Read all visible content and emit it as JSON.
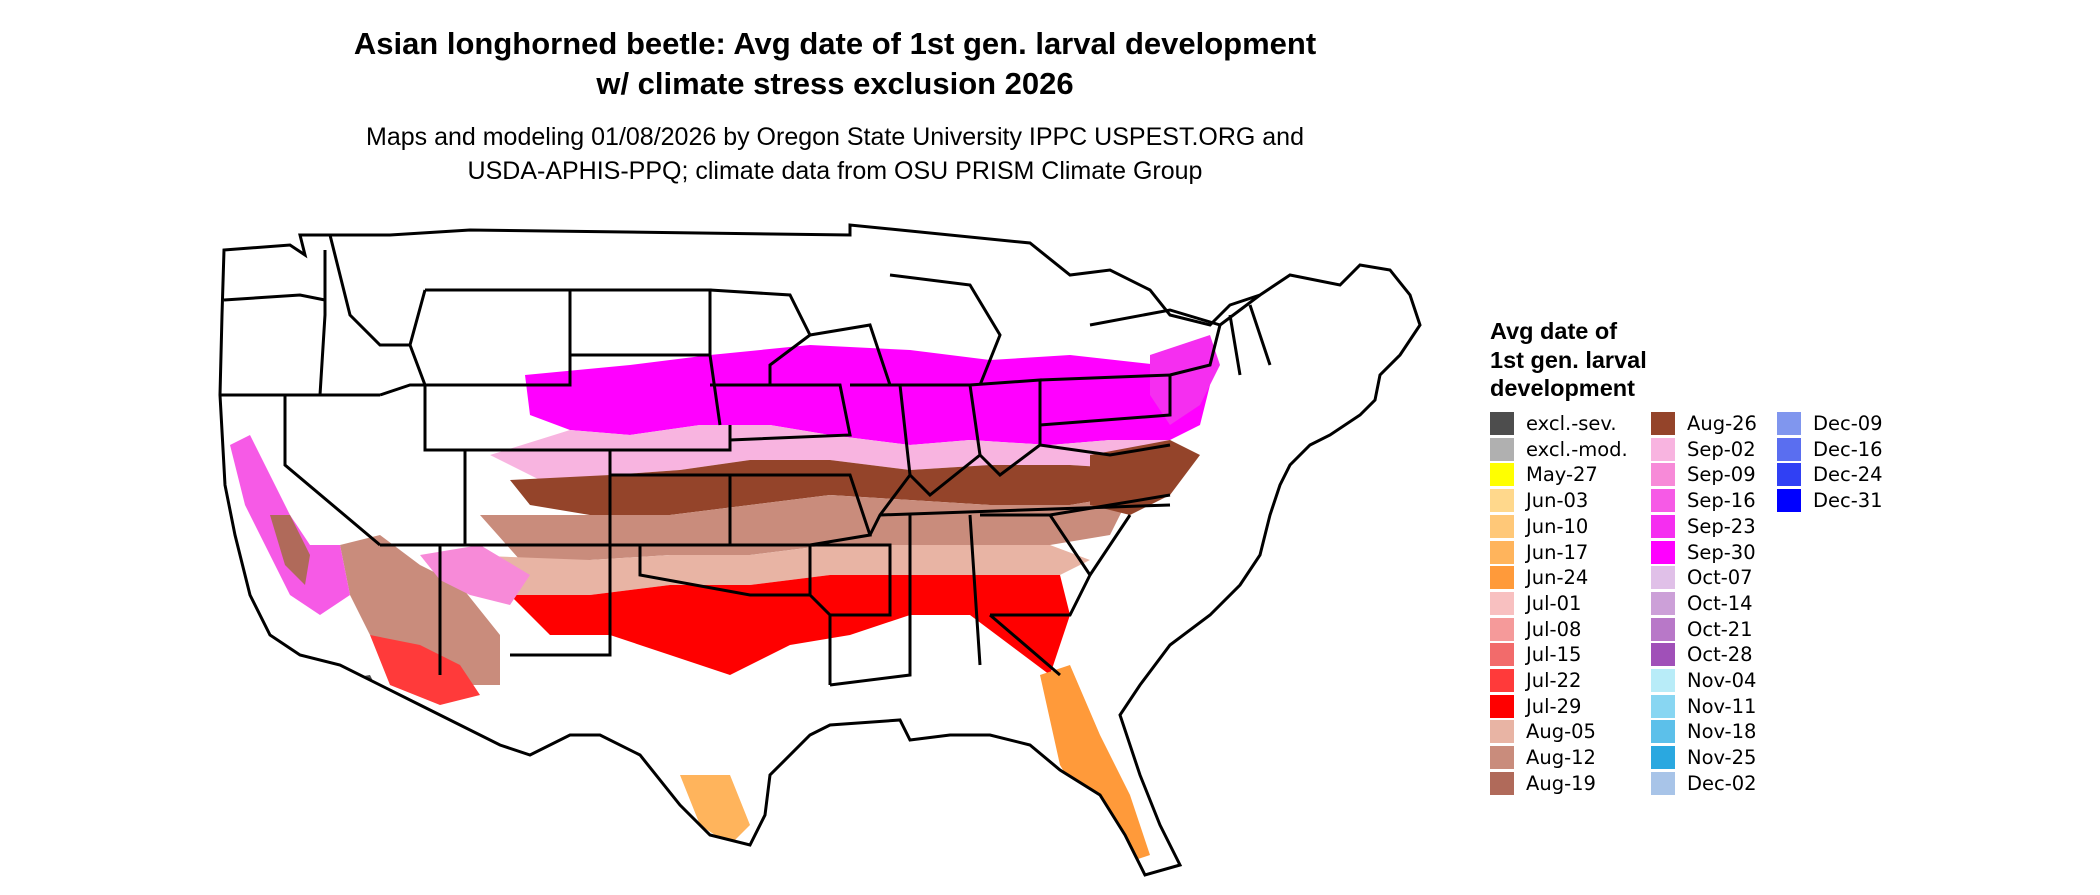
{
  "title": {
    "line1": "Asian longhorned beetle: Avg date of 1st gen. larval development",
    "line2": "w/ climate stress exclusion 2026"
  },
  "subtitle": {
    "line1": "Maps and modeling 01/08/2026 by Oregon State University IPPC USPEST.ORG and",
    "line2": "USDA-APHIS-PPQ; climate data from OSU PRISM Climate Group"
  },
  "legend": {
    "title_lines": [
      "Avg date of",
      "1st gen. larval",
      "development"
    ],
    "items": [
      {
        "label": "excl.-sev.",
        "color": "#4d4d4d"
      },
      {
        "label": "excl.-mod.",
        "color": "#b0b0b0"
      },
      {
        "label": "May-27",
        "color": "#ffff00"
      },
      {
        "label": "Jun-03",
        "color": "#ffd88c"
      },
      {
        "label": "Jun-10",
        "color": "#ffc878"
      },
      {
        "label": "Jun-17",
        "color": "#ffb45c"
      },
      {
        "label": "Jun-24",
        "color": "#ff9a3a"
      },
      {
        "label": "Jul-01",
        "color": "#f8c0c0"
      },
      {
        "label": "Jul-08",
        "color": "#f59a9a"
      },
      {
        "label": "Jul-15",
        "color": "#f26b6b"
      },
      {
        "label": "Jul-22",
        "color": "#ff3a3a"
      },
      {
        "label": "Jul-29",
        "color": "#ff0000"
      },
      {
        "label": "Aug-05",
        "color": "#e8b4a4"
      },
      {
        "label": "Aug-12",
        "color": "#c98c7c"
      },
      {
        "label": "Aug-19",
        "color": "#b06a5a"
      },
      {
        "label": "Aug-26",
        "color": "#94442a"
      },
      {
        "label": "Sep-02",
        "color": "#f8b4e0"
      },
      {
        "label": "Sep-09",
        "color": "#f78ad8"
      },
      {
        "label": "Sep-16",
        "color": "#f65ae6"
      },
      {
        "label": "Sep-23",
        "color": "#f52ef0"
      },
      {
        "label": "Sep-30",
        "color": "#ff00ff"
      },
      {
        "label": "Oct-07",
        "color": "#e0c0e8"
      },
      {
        "label": "Oct-14",
        "color": "#cca0d8"
      },
      {
        "label": "Oct-21",
        "color": "#b878c8"
      },
      {
        "label": "Oct-28",
        "color": "#a050b8"
      },
      {
        "label": "Nov-04",
        "color": "#b8ecf8"
      },
      {
        "label": "Nov-11",
        "color": "#88d6f2"
      },
      {
        "label": "Nov-18",
        "color": "#5cc0ea"
      },
      {
        "label": "Nov-25",
        "color": "#2aa8e0"
      },
      {
        "label": "Dec-02",
        "color": "#a8c4e8"
      },
      {
        "label": "Dec-09",
        "color": "#8096ee"
      },
      {
        "label": "Dec-16",
        "color": "#5a6ef0"
      },
      {
        "label": "Dec-24",
        "color": "#3040f4"
      },
      {
        "label": "Dec-31",
        "color": "#0000ff"
      }
    ]
  },
  "map": {
    "zones": [
      {
        "name": "zone-new-england-north",
        "color": "#ffffff"
      },
      {
        "name": "zone-midsouth-magenta",
        "color": "#ff00ff"
      },
      {
        "name": "zone-south-pink",
        "color": "#f8b4e0"
      },
      {
        "name": "zone-south-brown",
        "color": "#94442a"
      },
      {
        "name": "zone-deep-south-tan",
        "color": "#c98c7c"
      },
      {
        "name": "zone-gulf-red",
        "color": "#ff0000"
      },
      {
        "name": "zone-florida-orange",
        "color": "#ff9a3a"
      },
      {
        "name": "zone-southwest-mixed",
        "color": "#ff3a3a"
      },
      {
        "name": "zone-west-coast-pink",
        "color": "#f65ae6"
      },
      {
        "name": "zone-excluded-grey",
        "color": "#4d4d4d"
      }
    ]
  }
}
